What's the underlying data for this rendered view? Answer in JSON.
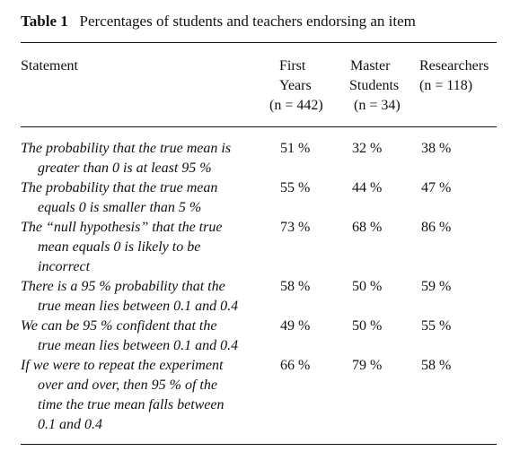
{
  "table": {
    "label": "Table 1",
    "title": "Percentages of students and teachers endorsing an item",
    "headers": {
      "statement": "Statement",
      "first_years": [
        "First",
        "Years",
        "(n = 442)"
      ],
      "master_students": [
        "Master",
        "Students",
        "(n = 34)"
      ],
      "researchers": [
        "Researchers",
        "(n = 118)"
      ]
    },
    "rows": [
      {
        "statement_lines": [
          "The probability that the true mean is",
          "greater than 0 is at least 95 %"
        ],
        "first_years": "51 %",
        "master_students": "32 %",
        "researchers": "38 %"
      },
      {
        "statement_lines": [
          "The probability that the true mean",
          "equals 0 is smaller than 5 %"
        ],
        "first_years": "55 %",
        "master_students": "44 %",
        "researchers": "47 %"
      },
      {
        "statement_lines": [
          "The “null hypothesis” that the true",
          "mean equals 0 is likely to be",
          "incorrect"
        ],
        "first_years": "73 %",
        "master_students": "68 %",
        "researchers": "86 %"
      },
      {
        "statement_lines": [
          "There is a 95 % probability that the",
          "true mean lies between 0.1 and 0.4"
        ],
        "first_years": "58 %",
        "master_students": "50 %",
        "researchers": "59 %"
      },
      {
        "statement_lines": [
          "We can be 95 % confident that the",
          "true mean lies between 0.1 and 0.4"
        ],
        "first_years": "49 %",
        "master_students": "50 %",
        "researchers": "55 %"
      },
      {
        "statement_lines": [
          "If we were to repeat the experiment",
          "over and over, then 95 % of the",
          "time the true mean falls between",
          "0.1 and 0.4"
        ],
        "first_years": "66 %",
        "master_students": "79 %",
        "researchers": "58 %"
      }
    ]
  }
}
